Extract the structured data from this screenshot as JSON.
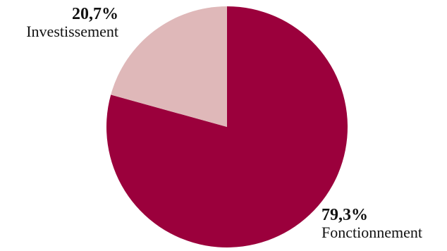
{
  "chart_data": {
    "type": "pie",
    "title": "",
    "slices": [
      {
        "label": "Fonctionnement",
        "value": 79.3,
        "display": "79,3%",
        "color": "#9b003c"
      },
      {
        "label": "Investissement",
        "value": 20.7,
        "display": "20,7%",
        "color": "#dfb8b9"
      }
    ],
    "start": "12 o'clock",
    "direction": "clockwise",
    "legend": "none"
  }
}
